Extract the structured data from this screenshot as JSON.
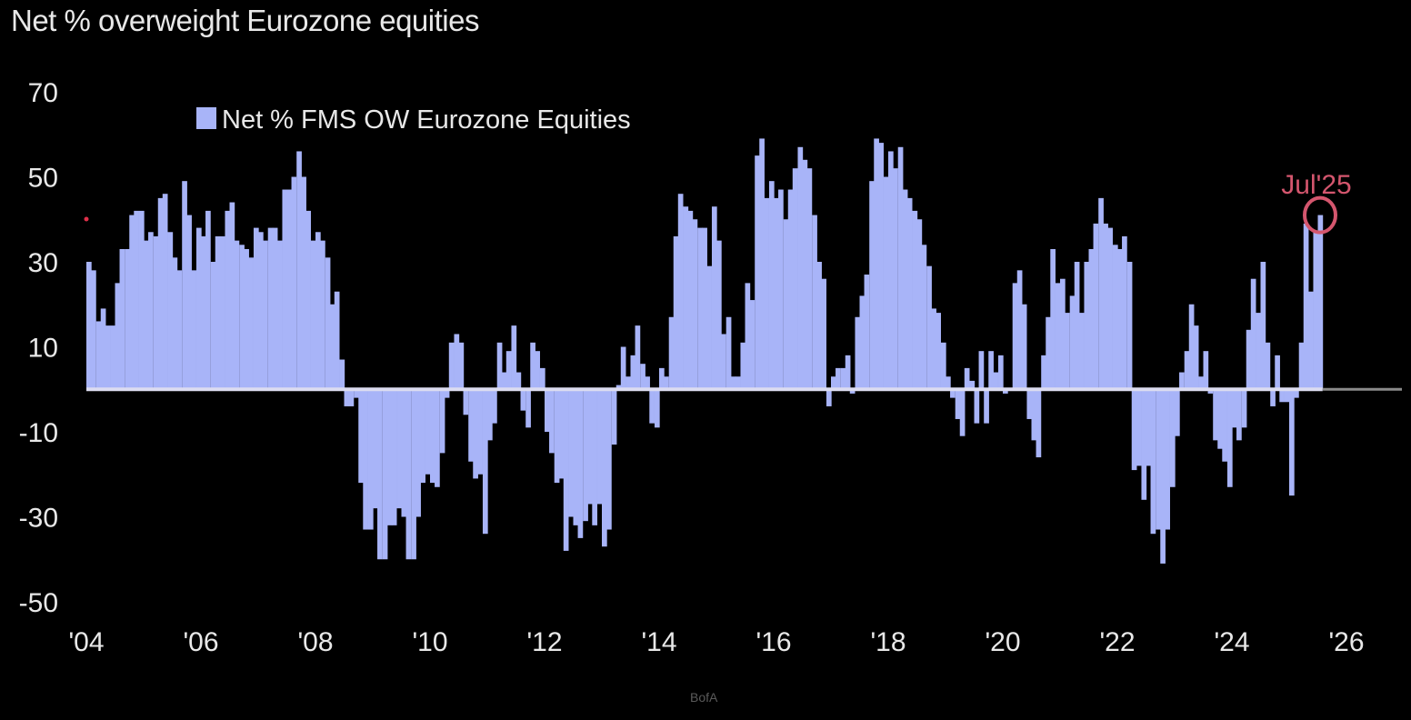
{
  "title": "Net % overweight Eurozone equities",
  "source": "BofA",
  "colors": {
    "bars": "#a8b4f8",
    "zero_line": "#dcdcf0",
    "annotation": "#d4566e",
    "text": "#e8e8e8",
    "background": "#000000"
  },
  "chart_data": {
    "type": "bar",
    "title": "Net % overweight Eurozone equities",
    "xlabel": "",
    "ylabel": "",
    "ylim": [
      -50,
      70
    ],
    "xlim": [
      2004,
      2027
    ],
    "grid": false,
    "legend": {
      "position": "top-left",
      "entries": [
        "Net % FMS OW Eurozone Equities"
      ]
    },
    "y_ticks": [
      "70",
      "50",
      "30",
      "10",
      "-10",
      "-30",
      "-50"
    ],
    "x_ticks": [
      "'04",
      "'06",
      "'08",
      "'10",
      "'12",
      "'14",
      "'16",
      "'18",
      "'20",
      "'22",
      "'24",
      "'26"
    ],
    "annotation": {
      "label": "Jul'25",
      "x": 2025.5,
      "y": 41
    },
    "series": [
      {
        "name": "Net % FMS OW Eurozone Equities",
        "points": [
          [
            2004.0,
            30
          ],
          [
            2004.08,
            28
          ],
          [
            2004.17,
            16
          ],
          [
            2004.25,
            19
          ],
          [
            2004.33,
            15
          ],
          [
            2004.42,
            15
          ],
          [
            2004.5,
            25
          ],
          [
            2004.58,
            33
          ],
          [
            2004.67,
            33
          ],
          [
            2004.75,
            41
          ],
          [
            2004.83,
            42
          ],
          [
            2004.92,
            42
          ],
          [
            2005.0,
            35
          ],
          [
            2005.08,
            37
          ],
          [
            2005.17,
            36
          ],
          [
            2005.25,
            45
          ],
          [
            2005.33,
            46
          ],
          [
            2005.42,
            37
          ],
          [
            2005.5,
            31
          ],
          [
            2005.58,
            28
          ],
          [
            2005.67,
            49
          ],
          [
            2005.75,
            41
          ],
          [
            2005.83,
            28
          ],
          [
            2005.92,
            38
          ],
          [
            2006.0,
            36
          ],
          [
            2006.08,
            42
          ],
          [
            2006.17,
            30
          ],
          [
            2006.25,
            36
          ],
          [
            2006.33,
            36
          ],
          [
            2006.42,
            42
          ],
          [
            2006.5,
            44
          ],
          [
            2006.58,
            35
          ],
          [
            2006.67,
            34
          ],
          [
            2006.75,
            33
          ],
          [
            2006.83,
            31
          ],
          [
            2006.92,
            38
          ],
          [
            2007.0,
            37
          ],
          [
            2007.08,
            35
          ],
          [
            2007.17,
            38
          ],
          [
            2007.25,
            38
          ],
          [
            2007.33,
            35
          ],
          [
            2007.42,
            47
          ],
          [
            2007.5,
            47
          ],
          [
            2007.58,
            50
          ],
          [
            2007.67,
            56
          ],
          [
            2007.75,
            50
          ],
          [
            2007.83,
            42
          ],
          [
            2007.92,
            35
          ],
          [
            2008.0,
            37
          ],
          [
            2008.08,
            35
          ],
          [
            2008.17,
            31
          ],
          [
            2008.25,
            20
          ],
          [
            2008.33,
            23
          ],
          [
            2008.42,
            7
          ],
          [
            2008.5,
            -4
          ],
          [
            2008.58,
            -4
          ],
          [
            2008.67,
            -2
          ],
          [
            2008.75,
            -22
          ],
          [
            2008.83,
            -33
          ],
          [
            2008.92,
            -33
          ],
          [
            2009.0,
            -28
          ],
          [
            2009.08,
            -40
          ],
          [
            2009.17,
            -40
          ],
          [
            2009.25,
            -32
          ],
          [
            2009.33,
            -32
          ],
          [
            2009.42,
            -28
          ],
          [
            2009.5,
            -30
          ],
          [
            2009.58,
            -40
          ],
          [
            2009.67,
            -40
          ],
          [
            2009.75,
            -30
          ],
          [
            2009.83,
            -22
          ],
          [
            2009.92,
            -20
          ],
          [
            2010.0,
            -22
          ],
          [
            2010.08,
            -23
          ],
          [
            2010.17,
            -15
          ],
          [
            2010.25,
            -2
          ],
          [
            2010.33,
            11
          ],
          [
            2010.42,
            13
          ],
          [
            2010.5,
            11
          ],
          [
            2010.58,
            -6
          ],
          [
            2010.67,
            -17
          ],
          [
            2010.75,
            -21
          ],
          [
            2010.83,
            -20
          ],
          [
            2010.92,
            -34
          ],
          [
            2011.0,
            -12
          ],
          [
            2011.08,
            -8
          ],
          [
            2011.17,
            11
          ],
          [
            2011.25,
            4
          ],
          [
            2011.33,
            9
          ],
          [
            2011.42,
            15
          ],
          [
            2011.5,
            4
          ],
          [
            2011.58,
            -5
          ],
          [
            2011.67,
            -9
          ],
          [
            2011.75,
            11
          ],
          [
            2011.83,
            9
          ],
          [
            2011.92,
            5
          ],
          [
            2012.0,
            -10
          ],
          [
            2012.08,
            -15
          ],
          [
            2012.17,
            -22
          ],
          [
            2012.25,
            -21
          ],
          [
            2012.33,
            -38
          ],
          [
            2012.42,
            -30
          ],
          [
            2012.5,
            -32
          ],
          [
            2012.58,
            -35
          ],
          [
            2012.67,
            -31
          ],
          [
            2012.75,
            -27
          ],
          [
            2012.83,
            -32
          ],
          [
            2012.92,
            -27
          ],
          [
            2013.0,
            -37
          ],
          [
            2013.08,
            -33
          ],
          [
            2013.17,
            -13
          ],
          [
            2013.25,
            1
          ],
          [
            2013.33,
            10
          ],
          [
            2013.42,
            3
          ],
          [
            2013.5,
            8
          ],
          [
            2013.58,
            15
          ],
          [
            2013.67,
            6
          ],
          [
            2013.75,
            3
          ],
          [
            2013.83,
            -8
          ],
          [
            2013.92,
            -9
          ],
          [
            2014.0,
            5
          ],
          [
            2014.08,
            3
          ],
          [
            2014.17,
            17
          ],
          [
            2014.25,
            36
          ],
          [
            2014.33,
            46
          ],
          [
            2014.42,
            43
          ],
          [
            2014.5,
            42
          ],
          [
            2014.58,
            40
          ],
          [
            2014.67,
            38
          ],
          [
            2014.75,
            38
          ],
          [
            2014.83,
            29
          ],
          [
            2014.92,
            43
          ],
          [
            2015.0,
            35
          ],
          [
            2015.08,
            13
          ],
          [
            2015.17,
            17
          ],
          [
            2015.25,
            3
          ],
          [
            2015.33,
            3
          ],
          [
            2015.42,
            11
          ],
          [
            2015.5,
            25
          ],
          [
            2015.58,
            21
          ],
          [
            2015.67,
            55
          ],
          [
            2015.75,
            59
          ],
          [
            2015.83,
            45
          ],
          [
            2015.92,
            49
          ],
          [
            2016.0,
            45
          ],
          [
            2016.08,
            47
          ],
          [
            2016.17,
            40
          ],
          [
            2016.25,
            47
          ],
          [
            2016.33,
            52
          ],
          [
            2016.42,
            57
          ],
          [
            2016.5,
            54
          ],
          [
            2016.58,
            52
          ],
          [
            2016.67,
            41
          ],
          [
            2016.75,
            30
          ],
          [
            2016.83,
            26
          ],
          [
            2016.92,
            -4
          ],
          [
            2017.0,
            3
          ],
          [
            2017.08,
            5
          ],
          [
            2017.17,
            5
          ],
          [
            2017.25,
            8
          ],
          [
            2017.33,
            -1
          ],
          [
            2017.42,
            17
          ],
          [
            2017.5,
            22
          ],
          [
            2017.58,
            27
          ],
          [
            2017.67,
            49
          ],
          [
            2017.75,
            59
          ],
          [
            2017.83,
            58
          ],
          [
            2017.92,
            50
          ],
          [
            2018.0,
            56
          ],
          [
            2018.08,
            52
          ],
          [
            2018.17,
            57
          ],
          [
            2018.25,
            47
          ],
          [
            2018.33,
            45
          ],
          [
            2018.42,
            42
          ],
          [
            2018.5,
            40
          ],
          [
            2018.58,
            34
          ],
          [
            2018.67,
            29
          ],
          [
            2018.75,
            19
          ],
          [
            2018.83,
            18
          ],
          [
            2018.92,
            11
          ],
          [
            2019.0,
            3
          ],
          [
            2019.08,
            -2
          ],
          [
            2019.17,
            -7
          ],
          [
            2019.25,
            -11
          ],
          [
            2019.33,
            5
          ],
          [
            2019.42,
            2
          ],
          [
            2019.5,
            -8
          ],
          [
            2019.58,
            9
          ],
          [
            2019.67,
            -8
          ],
          [
            2019.75,
            9
          ],
          [
            2019.83,
            4
          ],
          [
            2019.92,
            8
          ],
          [
            2020.0,
            -1
          ],
          [
            2020.08,
            0
          ],
          [
            2020.17,
            25
          ],
          [
            2020.25,
            28
          ],
          [
            2020.33,
            20
          ],
          [
            2020.42,
            -7
          ],
          [
            2020.5,
            -12
          ],
          [
            2020.58,
            -16
          ],
          [
            2020.67,
            8
          ],
          [
            2020.75,
            17
          ],
          [
            2020.83,
            33
          ],
          [
            2020.92,
            25
          ],
          [
            2021.0,
            26
          ],
          [
            2021.08,
            18
          ],
          [
            2021.17,
            22
          ],
          [
            2021.25,
            30
          ],
          [
            2021.33,
            18
          ],
          [
            2021.42,
            30
          ],
          [
            2021.5,
            33
          ],
          [
            2021.58,
            39
          ],
          [
            2021.67,
            45
          ],
          [
            2021.75,
            39
          ],
          [
            2021.83,
            38
          ],
          [
            2021.92,
            34
          ],
          [
            2022.0,
            33
          ],
          [
            2022.08,
            36
          ],
          [
            2022.17,
            30
          ],
          [
            2022.25,
            -19
          ],
          [
            2022.33,
            -18
          ],
          [
            2022.42,
            -26
          ],
          [
            2022.5,
            -18
          ],
          [
            2022.58,
            -34
          ],
          [
            2022.67,
            -33
          ],
          [
            2022.75,
            -41
          ],
          [
            2022.83,
            -33
          ],
          [
            2022.92,
            -23
          ],
          [
            2023.0,
            -11
          ],
          [
            2023.08,
            4
          ],
          [
            2023.17,
            9
          ],
          [
            2023.25,
            20
          ],
          [
            2023.33,
            15
          ],
          [
            2023.42,
            3
          ],
          [
            2023.5,
            9
          ],
          [
            2023.58,
            -1
          ],
          [
            2023.67,
            -12
          ],
          [
            2023.75,
            -14
          ],
          [
            2023.83,
            -17
          ],
          [
            2023.92,
            -23
          ],
          [
            2024.0,
            -9
          ],
          [
            2024.08,
            -12
          ],
          [
            2024.17,
            -9
          ],
          [
            2024.25,
            14
          ],
          [
            2024.33,
            26
          ],
          [
            2024.42,
            18
          ],
          [
            2024.5,
            30
          ],
          [
            2024.58,
            11
          ],
          [
            2024.67,
            -4
          ],
          [
            2024.75,
            8
          ],
          [
            2024.83,
            -3
          ],
          [
            2024.92,
            -3
          ],
          [
            2025.0,
            -25
          ],
          [
            2025.08,
            -2
          ],
          [
            2025.17,
            11
          ],
          [
            2025.25,
            39
          ],
          [
            2025.33,
            23
          ],
          [
            2025.42,
            37
          ],
          [
            2025.5,
            41
          ]
        ]
      }
    ]
  }
}
